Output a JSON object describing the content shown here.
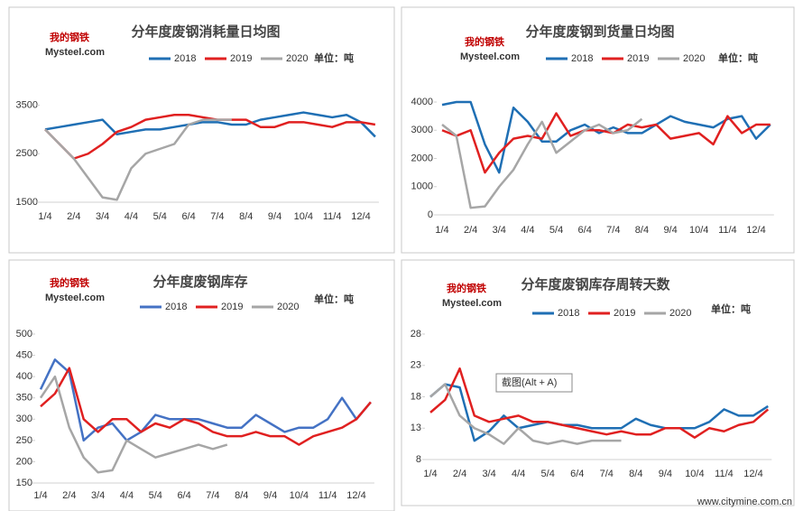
{
  "watermark": "www.citymine.com.cn",
  "logo": {
    "cn": "我的钢铁",
    "en": "Mysteel.com"
  },
  "chart_data": [
    {
      "type": "line",
      "title": "分年度废钢消耗量日均图",
      "unit": "单位：吨",
      "categories": [
        "1/4",
        null,
        "2/4",
        null,
        "3/4",
        null,
        "4/4",
        null,
        "5/4",
        null,
        "6/4",
        null,
        "7/4",
        null,
        "8/4",
        null,
        "9/4",
        null,
        "10/4",
        null,
        "11/4",
        null,
        "12/4",
        null
      ],
      "ylim": [
        1500,
        3900
      ],
      "yticks": [
        1500,
        2500,
        3500
      ],
      "series": [
        {
          "name": "2018",
          "color": "#1f6fb4",
          "values": [
            3000,
            3050,
            3100,
            3150,
            3200,
            2900,
            2950,
            3000,
            3000,
            3050,
            3100,
            3150,
            3150,
            3100,
            3100,
            3200,
            3250,
            3300,
            3350,
            3300,
            3250,
            3300,
            3150,
            2850
          ]
        },
        {
          "name": "2019",
          "color": "#e02020",
          "values": [
            3000,
            2700,
            2400,
            2500,
            2700,
            2950,
            3050,
            3200,
            3250,
            3300,
            3300,
            3250,
            3200,
            3200,
            3200,
            3050,
            3050,
            3150,
            3150,
            3100,
            3050,
            3150,
            3150,
            3100
          ]
        },
        {
          "name": "2020",
          "color": "#a6a6a6",
          "values": [
            3000,
            2700,
            2400,
            2000,
            1600,
            1550,
            2200,
            2500,
            2600,
            2700,
            3100,
            3200,
            3200,
            3200,
            null,
            null,
            null,
            null,
            null,
            null,
            null,
            null,
            null,
            null
          ]
        }
      ]
    },
    {
      "type": "line",
      "title": "分年度废钢到货量日均图",
      "unit": "单位：吨",
      "categories": [
        "1/4",
        null,
        "2/4",
        null,
        "3/4",
        null,
        "4/4",
        null,
        "5/4",
        null,
        "6/4",
        null,
        "7/4",
        null,
        "8/4",
        null,
        "9/4",
        null,
        "10/4",
        null,
        "11/4",
        null,
        "12/4",
        null
      ],
      "ylim": [
        0,
        4500
      ],
      "yticks": [
        0,
        1000,
        2000,
        3000,
        4000
      ],
      "series": [
        {
          "name": "2018",
          "color": "#1f6fb4",
          "values": [
            3900,
            4000,
            4000,
            2500,
            1500,
            3800,
            3300,
            2600,
            2600,
            3000,
            3200,
            2900,
            3100,
            2900,
            2900,
            3200,
            3500,
            3300,
            3200,
            3100,
            3400,
            3500,
            2700,
            3200
          ]
        },
        {
          "name": "2019",
          "color": "#e02020",
          "values": [
            3000,
            2800,
            3000,
            1500,
            2200,
            2700,
            2800,
            2700,
            3600,
            2800,
            3000,
            3000,
            2900,
            3200,
            3100,
            3200,
            2700,
            2800,
            2900,
            2500,
            3500,
            2900,
            3200,
            3200
          ]
        },
        {
          "name": "2020",
          "color": "#a6a6a6",
          "values": [
            3200,
            2800,
            250,
            300,
            1000,
            1600,
            2500,
            3300,
            2200,
            2600,
            3000,
            3200,
            2900,
            3000,
            3400,
            null,
            null,
            null,
            null,
            null,
            null,
            null,
            null,
            null
          ]
        }
      ]
    },
    {
      "type": "line",
      "title": "分年度废钢库存",
      "unit": "单位：吨",
      "categories": [
        "1/4",
        null,
        "2/4",
        null,
        "3/4",
        null,
        "4/4",
        null,
        "5/4",
        null,
        "6/4",
        null,
        "7/4",
        null,
        "8/4",
        null,
        "9/4",
        null,
        "10/4",
        null,
        "11/4",
        null,
        "12/4",
        null
      ],
      "ylim": [
        150,
        500
      ],
      "yticks": [
        150,
        200,
        250,
        300,
        350,
        400,
        450,
        500
      ],
      "series": [
        {
          "name": "2018",
          "color": "#4472c4",
          "values": [
            370,
            440,
            410,
            250,
            280,
            290,
            250,
            270,
            310,
            300,
            300,
            300,
            290,
            280,
            280,
            310,
            290,
            270,
            280,
            280,
            300,
            350,
            300,
            340
          ]
        },
        {
          "name": "2019",
          "color": "#e02020",
          "values": [
            330,
            360,
            420,
            300,
            270,
            300,
            300,
            270,
            290,
            280,
            300,
            290,
            270,
            260,
            260,
            270,
            260,
            260,
            240,
            260,
            270,
            280,
            300,
            340
          ]
        },
        {
          "name": "2020",
          "color": "#a6a6a6",
          "values": [
            350,
            400,
            280,
            210,
            175,
            180,
            250,
            230,
            210,
            220,
            230,
            240,
            230,
            240,
            null,
            null,
            null,
            null,
            null,
            null,
            null,
            null,
            null,
            null
          ]
        }
      ]
    },
    {
      "type": "line",
      "title": "分年度废钢库存周转天数",
      "unit": "单位：吨",
      "annotation": "截图(Alt + A)",
      "categories": [
        "1/4",
        null,
        "2/4",
        null,
        "3/4",
        null,
        "4/4",
        null,
        "5/4",
        null,
        "6/4",
        null,
        "7/4",
        null,
        "8/4",
        null,
        "9/4",
        null,
        "10/4",
        null,
        "11/4",
        null,
        "12/4",
        null
      ],
      "ylim": [
        8,
        28
      ],
      "yticks": [
        8,
        13,
        18,
        23,
        28
      ],
      "series": [
        {
          "name": "2018",
          "color": "#1f6fb4",
          "values": [
            18,
            20,
            19.5,
            11,
            12.5,
            15,
            13,
            13.5,
            14,
            13.5,
            13.5,
            13,
            13,
            13,
            14.5,
            13.5,
            13,
            13,
            13,
            14,
            16,
            15,
            15,
            16.5
          ]
        },
        {
          "name": "2019",
          "color": "#e02020",
          "values": [
            15.5,
            17.5,
            22.5,
            15,
            14,
            14.5,
            15,
            14,
            14,
            13.5,
            13,
            12.5,
            12,
            12.5,
            12,
            12,
            13,
            13,
            11.5,
            13,
            12.5,
            13.5,
            14,
            16
          ]
        },
        {
          "name": "2020",
          "color": "#a6a6a6",
          "values": [
            18,
            20,
            15,
            13,
            12,
            10.5,
            13,
            11,
            10.5,
            11,
            10.5,
            11,
            11,
            11,
            null,
            null,
            null,
            null,
            null,
            null,
            null,
            null,
            null,
            null
          ]
        }
      ]
    }
  ]
}
